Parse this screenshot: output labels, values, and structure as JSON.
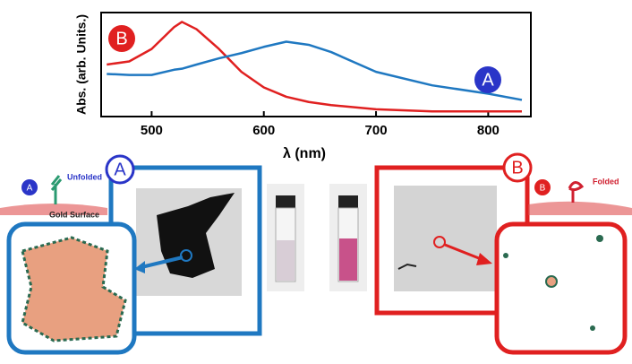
{
  "chart_data": {
    "type": "line",
    "x_label": "λ (nm)",
    "y_label": "Abs. (arb. Units.)",
    "x": [
      460,
      480,
      500,
      520,
      527,
      540,
      560,
      580,
      600,
      620,
      640,
      660,
      700,
      750,
      800,
      830
    ],
    "series": [
      {
        "name": "B",
        "color": "#e02020",
        "values": [
          0.5,
          0.53,
          0.65,
          0.86,
          0.91,
          0.84,
          0.65,
          0.43,
          0.28,
          0.19,
          0.14,
          0.11,
          0.07,
          0.05,
          0.05,
          0.05
        ]
      },
      {
        "name": "A",
        "color": "#1f78c1",
        "values": [
          0.41,
          0.4,
          0.4,
          0.45,
          0.46,
          0.5,
          0.56,
          0.61,
          0.67,
          0.72,
          0.69,
          0.62,
          0.43,
          0.3,
          0.22,
          0.16
        ]
      }
    ],
    "xlim": [
      455,
      838
    ],
    "xticks": [
      500,
      600,
      700,
      800
    ],
    "ylim": [
      0,
      1
    ]
  },
  "diagram": {
    "panel_a": {
      "badge": "A",
      "small_badge": "A",
      "state": "Unfolded",
      "surface": "Gold Surface"
    },
    "panel_b": {
      "badge": "B",
      "small_badge": "B",
      "state": "Folded"
    }
  }
}
